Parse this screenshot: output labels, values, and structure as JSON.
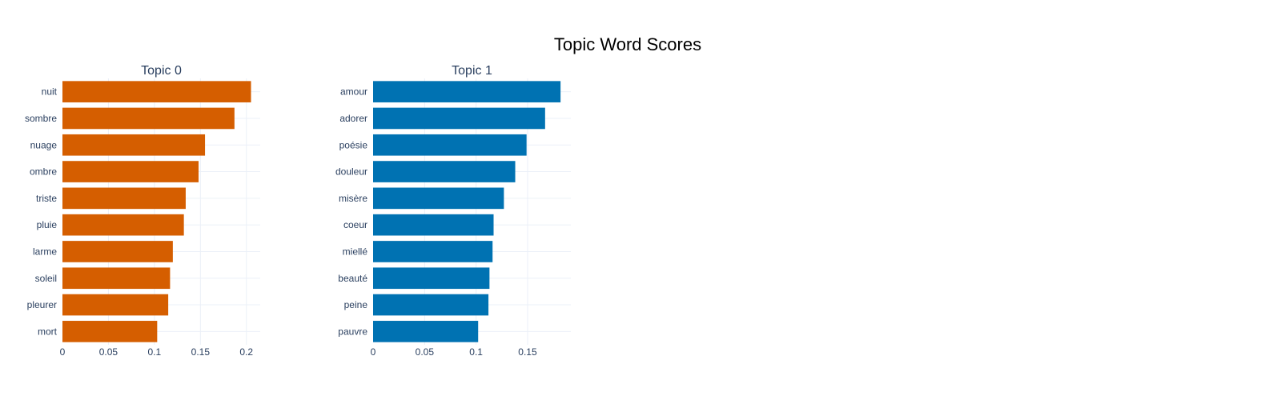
{
  "title": "Topic Word Scores",
  "chart_data": [
    {
      "type": "bar",
      "orientation": "horizontal",
      "title": "Topic 0",
      "color": "#D55E00",
      "categories": [
        "nuit",
        "sombre",
        "nuage",
        "ombre",
        "triste",
        "pluie",
        "larme",
        "soleil",
        "pleurer",
        "mort"
      ],
      "values": [
        0.205,
        0.187,
        0.155,
        0.148,
        0.134,
        0.132,
        0.12,
        0.117,
        0.115,
        0.103
      ],
      "xlim": [
        0,
        0.215
      ],
      "xticks": [
        0,
        0.05,
        0.1,
        0.15,
        0.2
      ],
      "xtick_labels": [
        "0",
        "0.05",
        "0.1",
        "0.15",
        "0.2"
      ],
      "grid": true
    },
    {
      "type": "bar",
      "orientation": "horizontal",
      "title": "Topic 1",
      "color": "#0072B2",
      "categories": [
        "amour",
        "adorer",
        "poésie",
        "douleur",
        "misère",
        "coeur",
        "miellé",
        "beauté",
        "peine",
        "pauvre"
      ],
      "values": [
        0.182,
        0.167,
        0.149,
        0.138,
        0.127,
        0.117,
        0.116,
        0.113,
        0.112,
        0.102
      ],
      "xlim": [
        0,
        0.192
      ],
      "xticks": [
        0,
        0.05,
        0.1,
        0.15
      ],
      "xtick_labels": [
        "0",
        "0.05",
        "0.1",
        "0.15"
      ],
      "grid": true
    }
  ]
}
